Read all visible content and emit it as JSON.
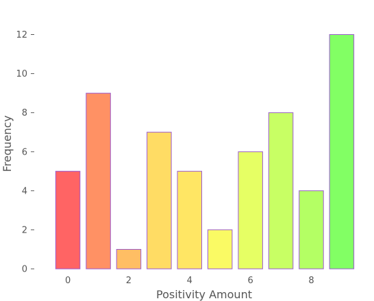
{
  "chart_data": {
    "type": "bar",
    "xlabel": "Positivity Amount",
    "ylabel": "Frequency",
    "x": [
      0,
      1,
      2,
      3,
      4,
      5,
      6,
      7,
      8,
      9
    ],
    "values": [
      5,
      9,
      1,
      7,
      5,
      2,
      6,
      8,
      4,
      12
    ],
    "colors": [
      "#ff6464",
      "#ff9164",
      "#ffbe64",
      "#ffdc64",
      "#ffe664",
      "#fafa64",
      "#e6ff64",
      "#c8ff64",
      "#b4ff64",
      "#82ff64"
    ],
    "x_ticks": [
      "0",
      "2",
      "4",
      "6",
      "8"
    ],
    "y_ticks": [
      "0",
      "2",
      "4",
      "6",
      "8",
      "10",
      "12"
    ],
    "ylim": [
      0,
      13
    ],
    "xlim": [
      -0.7,
      9.7
    ],
    "grid": false,
    "bar_edge_color": "#9b59d0"
  }
}
